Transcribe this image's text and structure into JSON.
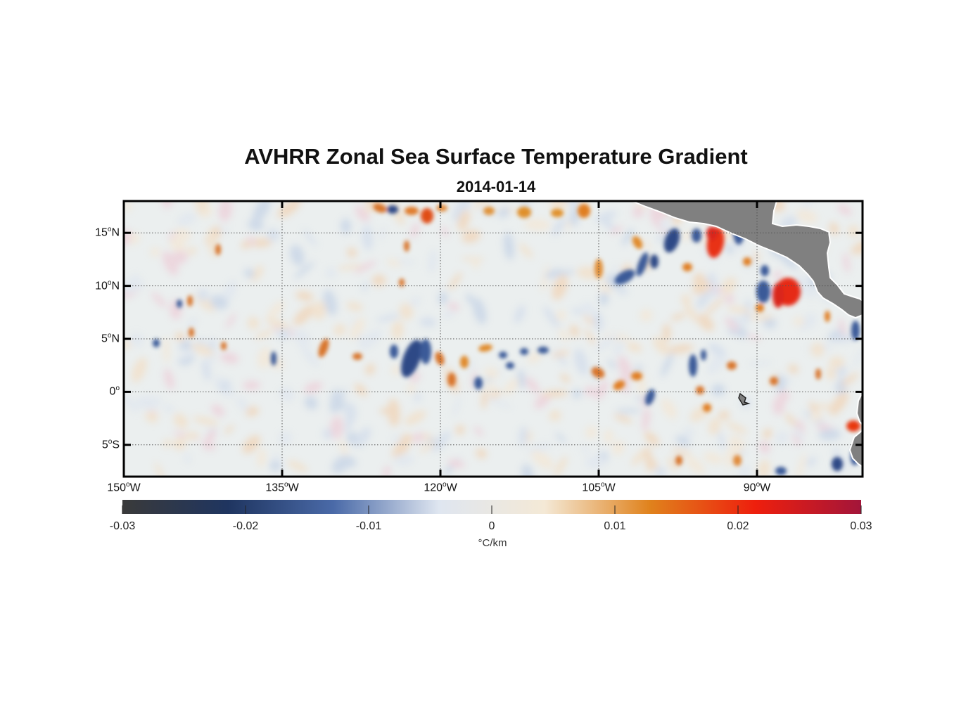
{
  "title": "AVHRR Zonal Sea Surface Temperature Gradient",
  "subtitle": "2014-01-14",
  "map": {
    "lat_ticks": [
      {
        "value": 15,
        "num": "15",
        "suffix": "N"
      },
      {
        "value": 10,
        "num": "10",
        "suffix": "N"
      },
      {
        "value": 5,
        "num": "5",
        "suffix": "N"
      },
      {
        "value": 0,
        "num": "0",
        "suffix": ""
      },
      {
        "value": -5,
        "num": "5",
        "suffix": "S"
      }
    ],
    "lon_ticks": [
      {
        "value": -150,
        "num": "150",
        "suffix": "W"
      },
      {
        "value": -135,
        "num": "135",
        "suffix": "W"
      },
      {
        "value": -120,
        "num": "120",
        "suffix": "W"
      },
      {
        "value": -105,
        "num": "105",
        "suffix": "W"
      },
      {
        "value": -90,
        "num": "90",
        "suffix": "W"
      }
    ],
    "lon_range": [
      -150,
      -80
    ],
    "lat_range": [
      -8,
      18
    ],
    "grid": true,
    "land_color": "#808080",
    "ocean_color": "#e9eeee"
  },
  "colorbar": {
    "ticks": [
      "-0.03",
      "-0.02",
      "-0.01",
      "0",
      "0.01",
      "0.02",
      "0.03"
    ],
    "unit": "°C/km",
    "range": [
      -0.03,
      0.03
    ],
    "stops": [
      "#3a3a3a",
      "#1f3560",
      "#4a6aa8",
      "#dfe6f0",
      "#f4e9d6",
      "#e0821c",
      "#ee1f0d",
      "#a3153a"
    ]
  }
}
